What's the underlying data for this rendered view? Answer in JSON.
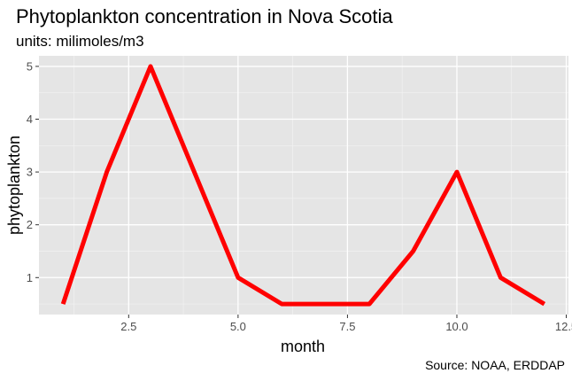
{
  "chart_data": {
    "type": "line",
    "title": "Phytoplankton concentration in Nova Scotia",
    "subtitle": "units: milimoles/m3",
    "caption": "Source: NOAA, ERDDAP",
    "xlabel": "month",
    "ylabel": "phytoplankton",
    "x_ticks": [
      "2.5",
      "5.0",
      "7.5",
      "10.0",
      "12.5"
    ],
    "y_ticks": [
      "1",
      "2",
      "3",
      "4",
      "5"
    ],
    "xlim": [
      0.45,
      12.55
    ],
    "ylim": [
      0.3,
      5.2
    ],
    "grid": true,
    "series": [
      {
        "color": "#ff0000",
        "x": [
          1,
          2,
          3,
          4,
          5,
          6,
          7,
          8,
          9,
          10,
          11,
          12
        ],
        "values": [
          0.5,
          3,
          5,
          3,
          1,
          0.5,
          0.5,
          0.5,
          1.5,
          3,
          1,
          0.5
        ]
      }
    ]
  }
}
